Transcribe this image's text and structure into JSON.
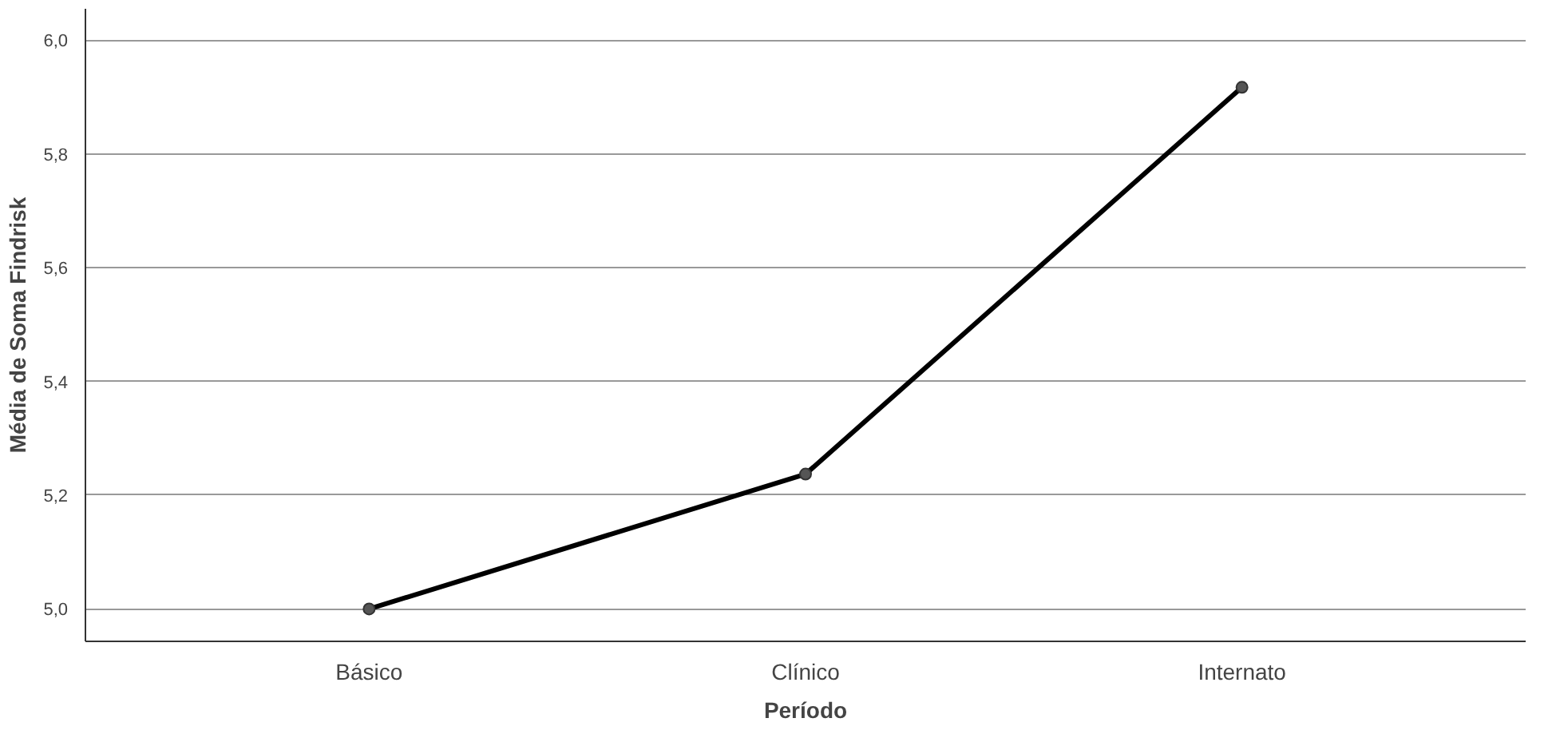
{
  "chart_data": {
    "type": "line",
    "xlabel": "Período",
    "ylabel": "Média de Soma Findrisk",
    "categories": [
      "Básico",
      "Clínico",
      "Internato"
    ],
    "series": [
      {
        "color": "#000000",
        "values": [
          5.0,
          5.237,
          5.917
        ]
      }
    ],
    "ylim": [
      4.943,
      6.055
    ],
    "yticks": [
      {
        "value": 5.0,
        "label": "5,0"
      },
      {
        "value": 5.2,
        "label": "5,2"
      },
      {
        "value": 5.4,
        "label": "5,4"
      },
      {
        "value": 5.6,
        "label": "5,6"
      },
      {
        "value": 5.8,
        "label": "5,8"
      },
      {
        "value": 6.0,
        "label": "6,0"
      }
    ],
    "grid": "y",
    "marker": "circle",
    "line_style": "solid"
  }
}
